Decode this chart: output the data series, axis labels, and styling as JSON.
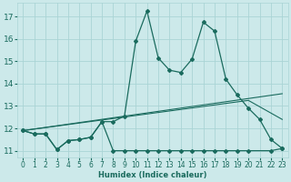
{
  "xlabel": "Humidex (Indice chaleur)",
  "bg_color": "#cce9ea",
  "grid_color": "#aad4d5",
  "line_color": "#1a6b5e",
  "xlim": [
    -0.5,
    23.5
  ],
  "ylim": [
    10.7,
    17.6
  ],
  "yticks": [
    11,
    12,
    13,
    14,
    15,
    16,
    17
  ],
  "xticks": [
    0,
    1,
    2,
    3,
    4,
    5,
    6,
    7,
    8,
    9,
    10,
    11,
    12,
    13,
    14,
    15,
    16,
    17,
    18,
    19,
    20,
    21,
    22,
    23
  ],
  "curve1_x": [
    0,
    1,
    2,
    3,
    4,
    5,
    6,
    7,
    8,
    9,
    10,
    11,
    12,
    13,
    14,
    15,
    16,
    17,
    18,
    19,
    20,
    21,
    22,
    23
  ],
  "curve1_y": [
    11.9,
    11.75,
    11.75,
    11.05,
    11.45,
    11.5,
    11.6,
    12.3,
    12.3,
    12.55,
    15.9,
    17.25,
    15.15,
    14.6,
    14.5,
    15.1,
    16.75,
    16.35,
    14.2,
    13.5,
    12.9,
    12.4,
    11.5,
    11.1
  ],
  "curve2_x": [
    0,
    1,
    2,
    3,
    4,
    5,
    6,
    7,
    8,
    9,
    10,
    11,
    12,
    13,
    14,
    15,
    16,
    17,
    18,
    19,
    20,
    22,
    23
  ],
  "curve2_y": [
    11.9,
    11.75,
    11.75,
    11.05,
    11.45,
    11.5,
    11.6,
    12.3,
    11.0,
    11.0,
    11.0,
    11.0,
    11.0,
    11.0,
    11.0,
    11.0,
    11.0,
    11.0,
    11.0,
    11.0,
    11.0,
    11.0,
    11.1
  ],
  "curve3_x": [
    0,
    23
  ],
  "curve3_y": [
    11.9,
    13.55
  ],
  "curve4_x": [
    0,
    20,
    23
  ],
  "curve4_y": [
    11.9,
    13.25,
    12.4
  ]
}
